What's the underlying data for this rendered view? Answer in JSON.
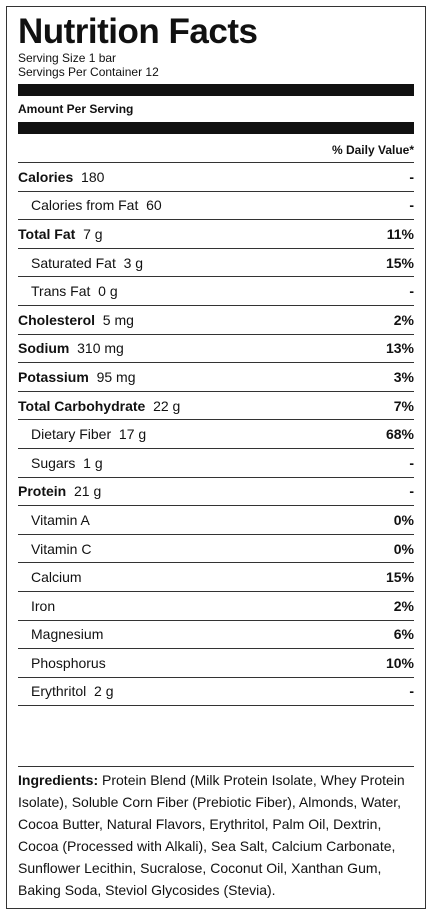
{
  "title": "Nutrition Facts",
  "serving_size": "Serving Size 1 bar",
  "servings_per_container": "Servings Per Container 12",
  "amount_per_serving": "Amount Per Serving",
  "daily_value_header": "% Daily Value*",
  "rows": [
    {
      "name": "Calories",
      "amount": "180",
      "pct": "-",
      "bold": true,
      "indent": false
    },
    {
      "name": "Calories from Fat",
      "amount": "60",
      "pct": "-",
      "bold": false,
      "indent": true
    },
    {
      "name": "Total Fat",
      "amount": "7 g",
      "pct": "11%",
      "bold": true,
      "indent": false
    },
    {
      "name": "Saturated Fat",
      "amount": "3 g",
      "pct": "15%",
      "bold": false,
      "indent": true
    },
    {
      "name": "Trans Fat",
      "amount": "0 g",
      "pct": "-",
      "bold": false,
      "indent": true
    },
    {
      "name": "Cholesterol",
      "amount": "5 mg",
      "pct": "2%",
      "bold": true,
      "indent": false
    },
    {
      "name": "Sodium",
      "amount": "310 mg",
      "pct": "13%",
      "bold": true,
      "indent": false
    },
    {
      "name": "Potassium",
      "amount": "95 mg",
      "pct": "3%",
      "bold": true,
      "indent": false
    },
    {
      "name": "Total Carbohydrate",
      "amount": "22 g",
      "pct": "7%",
      "bold": true,
      "indent": false
    },
    {
      "name": "Dietary Fiber",
      "amount": "17 g",
      "pct": "68%",
      "bold": false,
      "indent": true
    },
    {
      "name": "Sugars",
      "amount": "1 g",
      "pct": "-",
      "bold": false,
      "indent": true
    },
    {
      "name": "Protein",
      "amount": "21 g",
      "pct": "-",
      "bold": true,
      "indent": false
    },
    {
      "name": "Vitamin A",
      "amount": "",
      "pct": "0%",
      "bold": false,
      "indent": true
    },
    {
      "name": "Vitamin C",
      "amount": "",
      "pct": "0%",
      "bold": false,
      "indent": true
    },
    {
      "name": "Calcium",
      "amount": "",
      "pct": "15%",
      "bold": false,
      "indent": true
    },
    {
      "name": "Iron",
      "amount": "",
      "pct": "2%",
      "bold": false,
      "indent": true
    },
    {
      "name": "Magnesium",
      "amount": "",
      "pct": "6%",
      "bold": false,
      "indent": true
    },
    {
      "name": "Phosphorus",
      "amount": "",
      "pct": "10%",
      "bold": false,
      "indent": true
    },
    {
      "name": "Erythritol",
      "amount": "2 g",
      "pct": "-",
      "bold": false,
      "indent": true
    }
  ],
  "ingredients_label": "Ingredients:",
  "ingredients_text": "Protein Blend (Milk Protein Isolate, Whey Protein Isolate), Soluble Corn Fiber (Prebiotic Fiber), Almonds, Water, Cocoa Butter, Natural Flavors, Erythritol, Palm Oil, Dextrin, Cocoa (Processed with Alkali), Sea Salt, Calcium Carbonate, Sunflower Lecithin, Sucralose, Coconut Oil, Xanthan Gum, Baking Soda, Steviol Glycosides (Stevia)."
}
